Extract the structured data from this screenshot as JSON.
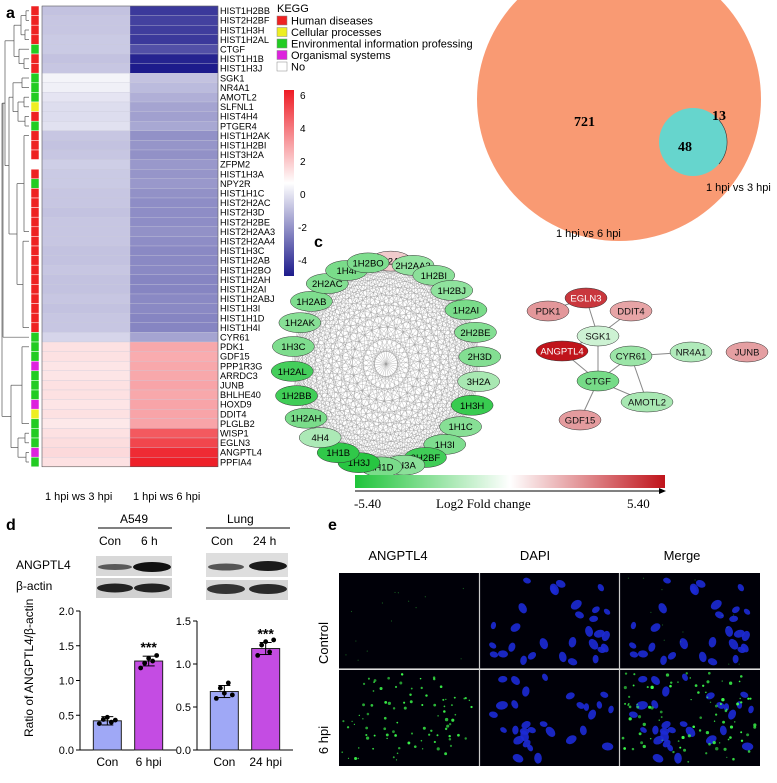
{
  "panel_labels": {
    "a": "a",
    "b": "b",
    "c": "c",
    "d": "d",
    "e": "e"
  },
  "heatmap": {
    "columns": [
      "1 hpi ws 3 hpi",
      "1 hpi ws 6 hpi"
    ],
    "legend_title": "KEGG",
    "legend_items": [
      {
        "label": "Human diseases",
        "color": "#ee2222"
      },
      {
        "label": "Cellular processes",
        "color": "#eeee22"
      },
      {
        "label": "Environmental information professing",
        "color": "#22cc22"
      },
      {
        "label": "Organismal systems",
        "color": "#dd22dd"
      },
      {
        "label": "No",
        "color": "#ffffff"
      }
    ],
    "colorbar_ticks": [
      "6",
      "4",
      "2",
      "0",
      "-2",
      "-4"
    ],
    "genes": [
      "HIST1H2BB",
      "HIST2H2BF",
      "HIST1H3H",
      "HIST1H2AL",
      "CTGF",
      "HIST1H1B",
      "HIST1H3J",
      "SGK1",
      "NR4A1",
      "AMOTL2",
      "SLFNL1",
      "HIST4H4",
      "PTGER4",
      "HIST1H2AK",
      "HIST1H2BI",
      "HIST3H2A",
      "ZFPM2",
      "HIST1H3A",
      "NPY2R",
      "HIST1H1C",
      "HIST2H2AC",
      "HIST2H3D",
      "HIST2H2BE",
      "HIST2H2AA3",
      "HIST2H2AA4",
      "HIST1H3C",
      "HIST1H2AB",
      "HIST1H2BO",
      "HIST1H2AH",
      "HIST1H2AI",
      "HIST1H2ABJ",
      "HIST1H3I",
      "HIST1H1D",
      "HIST1H4I",
      "CYR61",
      "PDK1",
      "GDF15",
      "PPP1R3G",
      "ARRDC3",
      "JUNB",
      "BHLHE40",
      "HOXD9",
      "DDIT4",
      "PLGLB2",
      "WISP1",
      "EGLN3",
      "ANGPTL4",
      "PPFIA4"
    ],
    "col1": [
      -1.6,
      -1.5,
      -1.5,
      -1.4,
      -1.4,
      -1.6,
      -1.5,
      -0.3,
      -0.4,
      -0.7,
      -0.9,
      -0.9,
      -0.8,
      -1.5,
      -1.6,
      -1.5,
      -1.3,
      -1.4,
      -1.4,
      -1.5,
      -1.5,
      -1.6,
      -1.5,
      -1.5,
      -1.5,
      -1.6,
      -1.6,
      -1.5,
      -1.6,
      -1.6,
      -1.5,
      -1.6,
      -1.5,
      -1.5,
      -1.1,
      0.8,
      0.8,
      0.7,
      0.7,
      0.8,
      0.8,
      0.7,
      0.8,
      0.6,
      0.8,
      0.9,
      1.0,
      0.8
    ],
    "col2": [
      -5.2,
      -5.0,
      -5.1,
      -5.2,
      -4.6,
      -5.8,
      -6.0,
      -1.6,
      -1.8,
      -2.1,
      -2.4,
      -2.5,
      -2.3,
      -2.9,
      -2.8,
      -2.9,
      -2.7,
      -2.8,
      -2.7,
      -2.9,
      -3.0,
      -3.0,
      -3.0,
      -2.9,
      -3.0,
      -3.1,
      -3.1,
      -3.1,
      -3.2,
      -3.2,
      -3.1,
      -3.1,
      -3.2,
      -3.2,
      -2.4,
      2.3,
      2.2,
      2.3,
      2.3,
      2.4,
      2.3,
      2.4,
      2.4,
      2.4,
      4.4,
      4.9,
      5.6,
      5.9
    ],
    "kegg": [
      "r",
      "r",
      "r",
      "r",
      "g",
      "r",
      "r",
      "g",
      "g",
      "g",
      "y",
      "r",
      "g",
      "r",
      "r",
      "r",
      "n",
      "r",
      "g",
      "r",
      "r",
      "r",
      "r",
      "r",
      "r",
      "r",
      "r",
      "r",
      "r",
      "r",
      "r",
      "r",
      "r",
      "r",
      "g",
      "g",
      "g",
      "m",
      "g",
      "g",
      "g",
      "m",
      "y",
      "g",
      "g",
      "g",
      "m",
      "g"
    ]
  },
  "venn": {
    "only_6hpi": "721",
    "overlap": "48",
    "only_3hpi": "13",
    "label_6hpi": "1 hpi vs 6 hpi",
    "label_3hpi": "1 hpi vs 3 hpi",
    "color_6hpi": "#f99a73",
    "color_3hpi": "#5ed8d2"
  },
  "network": {
    "hairball_nodes": [
      {
        "label": "2H2AA",
        "lfc": 1.2
      },
      {
        "label": "2H2AA3",
        "lfc": -2.6
      },
      {
        "label": "1H2BI",
        "lfc": -2.8
      },
      {
        "label": "1H2BJ",
        "lfc": -2.7
      },
      {
        "label": "1H2AI",
        "lfc": -3.2
      },
      {
        "label": "2H2BE",
        "lfc": -3.0
      },
      {
        "label": "2H3D",
        "lfc": -3.0
      },
      {
        "label": "3H2A",
        "lfc": -2.1
      },
      {
        "label": "1H3H",
        "lfc": -4.8
      },
      {
        "label": "1H1C",
        "lfc": -2.9
      },
      {
        "label": "1H3I",
        "lfc": -3.1
      },
      {
        "label": "2H2BF",
        "lfc": -4.6
      },
      {
        "label": "1H3A",
        "lfc": -2.8
      },
      {
        "label": "1H1D",
        "lfc": -3.2
      },
      {
        "label": "1H3J",
        "lfc": -5.2
      },
      {
        "label": "1H1B",
        "lfc": -5.0
      },
      {
        "label": "4H4",
        "lfc": -2.0
      },
      {
        "label": "1H2AH",
        "lfc": -3.2
      },
      {
        "label": "1H2BB",
        "lfc": -4.6
      },
      {
        "label": "1H2AL",
        "lfc": -4.5
      },
      {
        "label": "1H3C",
        "lfc": -3.1
      },
      {
        "label": "1H2AK",
        "lfc": -2.9
      },
      {
        "label": "1H2AB",
        "lfc": -3.1
      },
      {
        "label": "2H2AC",
        "lfc": -3.0
      },
      {
        "label": "1H4I",
        "lfc": -3.2
      },
      {
        "label": "1H2BO",
        "lfc": -3.1
      }
    ],
    "small_nodes": [
      {
        "label": "EGLN3",
        "lfc": 4.6
      },
      {
        "label": "PDK1",
        "lfc": 2.4
      },
      {
        "label": "DDIT4",
        "lfc": 2.1
      },
      {
        "label": "SGK1",
        "lfc": -1.2
      },
      {
        "label": "ANGPTL4",
        "lfc": 5.4
      },
      {
        "label": "CYR61",
        "lfc": -2.4
      },
      {
        "label": "NR4A1",
        "lfc": -1.9
      },
      {
        "label": "JUNB",
        "lfc": 2.2
      },
      {
        "label": "CTGF",
        "lfc": -3.3
      },
      {
        "label": "AMOTL2",
        "lfc": -2.1
      },
      {
        "label": "GDF15",
        "lfc": 2.3
      }
    ],
    "small_edges": [
      [
        "EGLN3",
        "PDK1"
      ],
      [
        "EGLN3",
        "SGK1"
      ],
      [
        "DDIT4",
        "SGK1"
      ],
      [
        "SGK1",
        "ANGPTL4"
      ],
      [
        "SGK1",
        "CTGF"
      ],
      [
        "ANGPTL4",
        "CTGF"
      ],
      [
        "CYR61",
        "CTGF"
      ],
      [
        "CYR61",
        "NR4A1"
      ],
      [
        "CTGF",
        "AMOTL2"
      ],
      [
        "CTGF",
        "GDF15"
      ],
      [
        "CYR61",
        "AMOTL2"
      ]
    ],
    "scale_min": "-5.40",
    "scale_max": "5.40",
    "scale_title": "Log2 Fold change"
  },
  "western": {
    "cell_title": "A549",
    "cell_lanes": [
      "Con",
      "6 h"
    ],
    "tissue_title": "Lung",
    "tissue_lanes": [
      "Con",
      "24 h"
    ],
    "row_labels": [
      "ANGPTL4",
      "β-actin"
    ]
  },
  "chart_data": [
    {
      "type": "bar",
      "categories": [
        "Con",
        "6 hpi"
      ],
      "values": [
        0.42,
        1.28
      ],
      "points": [
        [
          0.38,
          0.44,
          0.47,
          0.4,
          0.43
        ],
        [
          1.18,
          1.25,
          1.32,
          1.28,
          1.36
        ]
      ],
      "error": [
        0.06,
        0.07
      ],
      "ylabel": "Ratio of ANGPTL4/β-actin",
      "ylim": [
        0,
        2.0
      ],
      "yticks": [
        "0.0",
        "0.5",
        "1.0",
        "1.5",
        "2.0"
      ],
      "significance": "***",
      "colors": [
        "#9fa8f6",
        "#c44ce3"
      ]
    },
    {
      "type": "bar",
      "categories": [
        "Con",
        "24 hpi"
      ],
      "values": [
        0.68,
        1.18
      ],
      "points": [
        [
          0.6,
          0.72,
          0.66,
          0.78,
          0.64
        ],
        [
          1.1,
          1.22,
          1.26,
          1.14,
          1.28
        ]
      ],
      "error": [
        0.07,
        0.07
      ],
      "ylim": [
        0,
        1.5
      ],
      "yticks": [
        "0.0",
        "0.5",
        "1.0",
        "1.5"
      ],
      "significance": "***",
      "colors": [
        "#9fa8f6",
        "#c44ce3"
      ]
    }
  ],
  "microscopy": {
    "columns": [
      "ANGPTL4",
      "DAPI",
      "Merge"
    ],
    "rows": [
      "Control",
      "6 hpi"
    ]
  }
}
